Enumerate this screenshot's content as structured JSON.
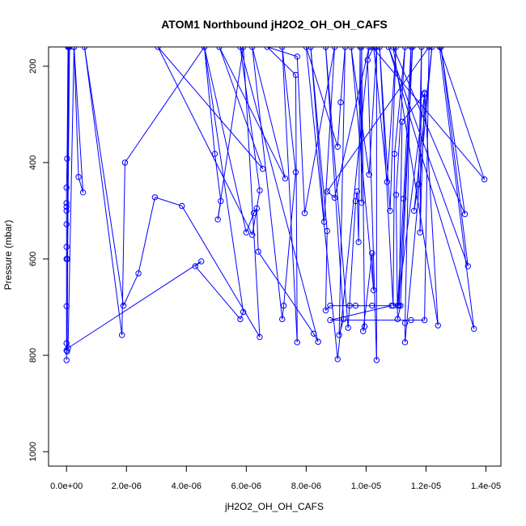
{
  "chart_data": {
    "type": "line",
    "title": "ATOM1 Northbound jH2O2_OH_OH_CAFS",
    "xlabel": "jH2O2_OH_OH_CAFS",
    "ylabel": "Pressure (mbar)",
    "xlim": [
      -6e-07,
      1.45e-05
    ],
    "ylim": [
      1030,
      160
    ],
    "y_inverted": true,
    "x_ticks": [
      {
        "value": 0,
        "label": "0.0e+00"
      },
      {
        "value": 2e-06,
        "label": "2.0e-06"
      },
      {
        "value": 4e-06,
        "label": "4.0e-06"
      },
      {
        "value": 6e-06,
        "label": "6.0e-06"
      },
      {
        "value": 8e-06,
        "label": "8.0e-06"
      },
      {
        "value": 1e-05,
        "label": "1.0e-05"
      },
      {
        "value": 1.2e-05,
        "label": "1.2e-05"
      },
      {
        "value": 1.4e-05,
        "label": "1.4e-05"
      }
    ],
    "y_ticks": [
      {
        "value": 200,
        "label": "200"
      },
      {
        "value": 400,
        "label": "400"
      },
      {
        "value": 600,
        "label": "600"
      },
      {
        "value": 800,
        "label": "800"
      },
      {
        "value": 1000,
        "label": "1000"
      }
    ],
    "grid": false,
    "color": "#0000ff",
    "series": [
      {
        "marker": "open-circle",
        "points": [
          [
            0,
            810
          ],
          [
            0,
            790
          ],
          [
            0,
            775
          ],
          [
            0,
            698
          ],
          [
            0,
            600
          ],
          [
            0,
            575
          ],
          [
            0,
            528
          ],
          [
            0,
            500
          ],
          [
            0,
            492
          ],
          [
            0,
            484
          ],
          [
            0,
            452
          ],
          [
            2e-08,
            392
          ],
          [
            5e-08,
            160
          ],
          [
            8e-08,
            160
          ],
          [
            2e-08,
            792
          ],
          [
            5e-08,
            160
          ],
          [
            8e-08,
            160
          ],
          [
            3e-08,
            600
          ],
          [
            1e-07,
            160
          ],
          [
            2.5e-07,
            160
          ],
          [
            4e-07,
            430
          ],
          [
            5.5e-07,
            462
          ],
          [
            2.5e-07,
            160
          ],
          [
            5e-08,
            785
          ],
          [
            4.5e-06,
            605
          ],
          [
            4.3e-06,
            615
          ],
          [
            5.8e-06,
            725
          ],
          [
            5.9e-06,
            710
          ],
          [
            4.6e-06,
            160
          ],
          [
            1.95e-06,
            400
          ],
          [
            1.85e-06,
            758
          ],
          [
            6e-07,
            160
          ],
          [
            1.9e-06,
            697
          ],
          [
            2.4e-06,
            630
          ],
          [
            2.95e-06,
            472
          ],
          [
            3.85e-06,
            490
          ],
          [
            6.45e-06,
            762
          ],
          [
            5.9e-06,
            160
          ],
          [
            5.05e-06,
            518
          ],
          [
            5.15e-06,
            480
          ],
          [
            4.95e-06,
            382
          ],
          [
            4.6e-06,
            160
          ],
          [
            6e-06,
            545
          ],
          [
            6.25e-06,
            505
          ],
          [
            6.35e-06,
            495
          ],
          [
            6.4e-06,
            585
          ],
          [
            8.25e-06,
            755
          ],
          [
            8.4e-06,
            772
          ],
          [
            5.8e-06,
            160
          ],
          [
            6.45e-06,
            458
          ],
          [
            6.2e-06,
            550
          ],
          [
            3.05e-06,
            160
          ],
          [
            6.55e-06,
            413
          ],
          [
            5.1e-06,
            160
          ],
          [
            7.3e-06,
            433
          ],
          [
            6.2e-06,
            160
          ],
          [
            7.2e-06,
            725
          ],
          [
            7.25e-06,
            697
          ],
          [
            7.65e-06,
            420
          ],
          [
            7.2e-06,
            160
          ],
          [
            7.7e-06,
            773
          ],
          [
            7.65e-06,
            218
          ],
          [
            6.7e-06,
            160
          ],
          [
            7.7e-06,
            180
          ],
          [
            7.95e-06,
            505
          ],
          [
            8.95e-06,
            160
          ],
          [
            8.6e-06,
            523
          ],
          [
            8.15e-06,
            160
          ],
          [
            8.7e-06,
            542
          ],
          [
            8.65e-06,
            707
          ],
          [
            8.8e-06,
            697
          ],
          [
            9.45e-06,
            697
          ],
          [
            9.65e-06,
            697
          ],
          [
            1.02e-05,
            697
          ],
          [
            1.085e-05,
            697
          ],
          [
            8.8e-06,
            727
          ],
          [
            1.15e-05,
            727
          ],
          [
            1.195e-05,
            727
          ],
          [
            1.21e-05,
            160
          ],
          [
            8.7e-06,
            460
          ],
          [
            8.95e-06,
            473
          ],
          [
            1.01e-05,
            160
          ],
          [
            9.05e-06,
            808
          ],
          [
            8e-06,
            160
          ],
          [
            9.05e-06,
            367
          ],
          [
            9.15e-06,
            275
          ],
          [
            9.3e-06,
            160
          ],
          [
            9.1e-06,
            758
          ],
          [
            9.25e-06,
            725
          ],
          [
            8.65e-06,
            160
          ],
          [
            9.4e-06,
            743
          ],
          [
            9.65e-06,
            480
          ],
          [
            9.7e-06,
            460
          ],
          [
            9.75e-06,
            565
          ],
          [
            9.8e-06,
            160
          ],
          [
            9.85e-06,
            483
          ],
          [
            9.85e-06,
            160
          ],
          [
            9.95e-06,
            740
          ],
          [
            9.9e-06,
            750
          ],
          [
            1.02e-05,
            588
          ],
          [
            1.025e-05,
            665
          ],
          [
            9.5e-06,
            160
          ],
          [
            1.01e-05,
            425
          ],
          [
            1.035e-05,
            160
          ],
          [
            1.035e-05,
            810
          ],
          [
            1.005e-05,
            187
          ],
          [
            1.025e-05,
            160
          ],
          [
            1.07e-05,
            440
          ],
          [
            1.1e-05,
            160
          ],
          [
            1.08e-05,
            500
          ],
          [
            1.045e-05,
            160
          ],
          [
            1.09e-05,
            697
          ],
          [
            1.095e-05,
            382
          ],
          [
            1.13e-05,
            160
          ],
          [
            1.1e-05,
            467
          ],
          [
            1.105e-05,
            725
          ],
          [
            1.115e-05,
            697
          ],
          [
            1.155e-05,
            160
          ],
          [
            1.11e-05,
            697
          ],
          [
            1.12e-05,
            315
          ],
          [
            1.195e-05,
            258
          ],
          [
            1.105e-05,
            697
          ],
          [
            1.125e-05,
            475
          ],
          [
            1.15e-05,
            160
          ],
          [
            1.13e-05,
            733
          ],
          [
            1.13e-05,
            773
          ],
          [
            1.22e-05,
            160
          ],
          [
            1.16e-05,
            500
          ],
          [
            1.175e-05,
            445
          ],
          [
            1.185e-05,
            160
          ],
          [
            1.18e-05,
            545
          ],
          [
            1.195e-05,
            255
          ],
          [
            1.24e-05,
            738
          ],
          [
            1.09e-05,
            160
          ],
          [
            1.33e-05,
            507
          ],
          [
            1.25e-05,
            160
          ],
          [
            1.34e-05,
            615
          ],
          [
            1.075e-05,
            160
          ],
          [
            1.36e-05,
            745
          ],
          [
            1.245e-05,
            160
          ],
          [
            1.395e-05,
            435
          ],
          [
            1.02e-05,
            160
          ]
        ]
      }
    ]
  }
}
